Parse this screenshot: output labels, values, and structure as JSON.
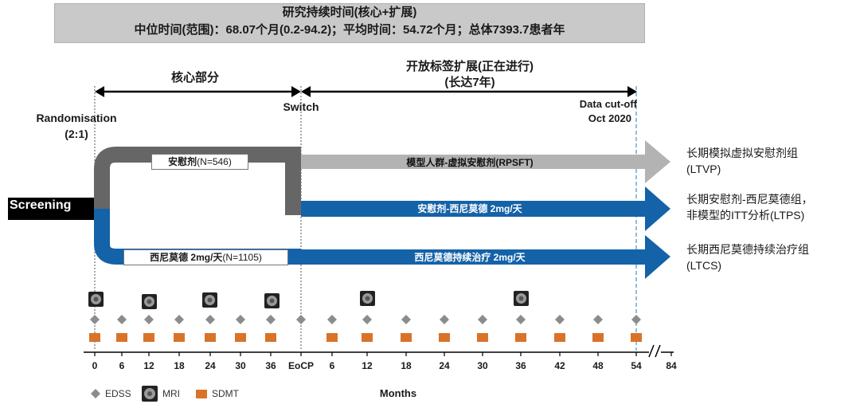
{
  "banner": {
    "line1": "研究持续时间(核心+扩展)",
    "line2": "中位时间(范围)：68.07个月(0.2-94.2)；平均时间：54.72个月；总体7393.7患者年"
  },
  "phases": {
    "core": "核心部分",
    "extension_line1": "开放标签扩展(正在进行)",
    "extension_line2": "(长达7年)",
    "switch": "Switch",
    "randomisation_line1": "Randomisation",
    "randomisation_line2": "(2:1)",
    "cutoff_line1": "Data cut-off",
    "cutoff_line2": "Oct 2020"
  },
  "screening": "Screening",
  "arms": {
    "placebo_core_name": "安慰剂",
    "placebo_core_n": "(N=546)",
    "siponimod_core_name": "西尼莫德 2mg/天",
    "siponimod_core_n": "(N=1105)",
    "placebo_ext": "模型人群-虚拟安慰剂(RPSFT)",
    "switch_ext": "安慰剂-西尼莫德 2mg/天",
    "siponimod_ext": "西尼莫德持续治疗 2mg/天"
  },
  "outcomes": {
    "ltvp_line1": "长期模拟虚拟安慰剂组",
    "ltvp_line2": "(LTVP)",
    "ltps_line1": "长期安慰剂-西尼莫德组，",
    "ltps_line2": "非模型的ITT分析(LTPS)",
    "ltcs_line1": "长期西尼莫德持续治疗组",
    "ltcs_line2": "(LTCS)"
  },
  "axis": {
    "ticks": [
      "0",
      "6",
      "12",
      "18",
      "24",
      "30",
      "36",
      "EoCP",
      "6",
      "12",
      "18",
      "24",
      "30",
      "36",
      "42",
      "48",
      "54",
      "84"
    ],
    "label": "Months"
  },
  "legend": {
    "edss": "EDSS",
    "mri": "MRI",
    "sdmt": "SDMT"
  },
  "colors": {
    "dark_gray": "#666666",
    "light_gray": "#b3b3b3",
    "blue": "#1462a8",
    "orange": "#d9732a",
    "diamond": "#8c8c8c",
    "cutoff_line": "#6fa7d6"
  }
}
